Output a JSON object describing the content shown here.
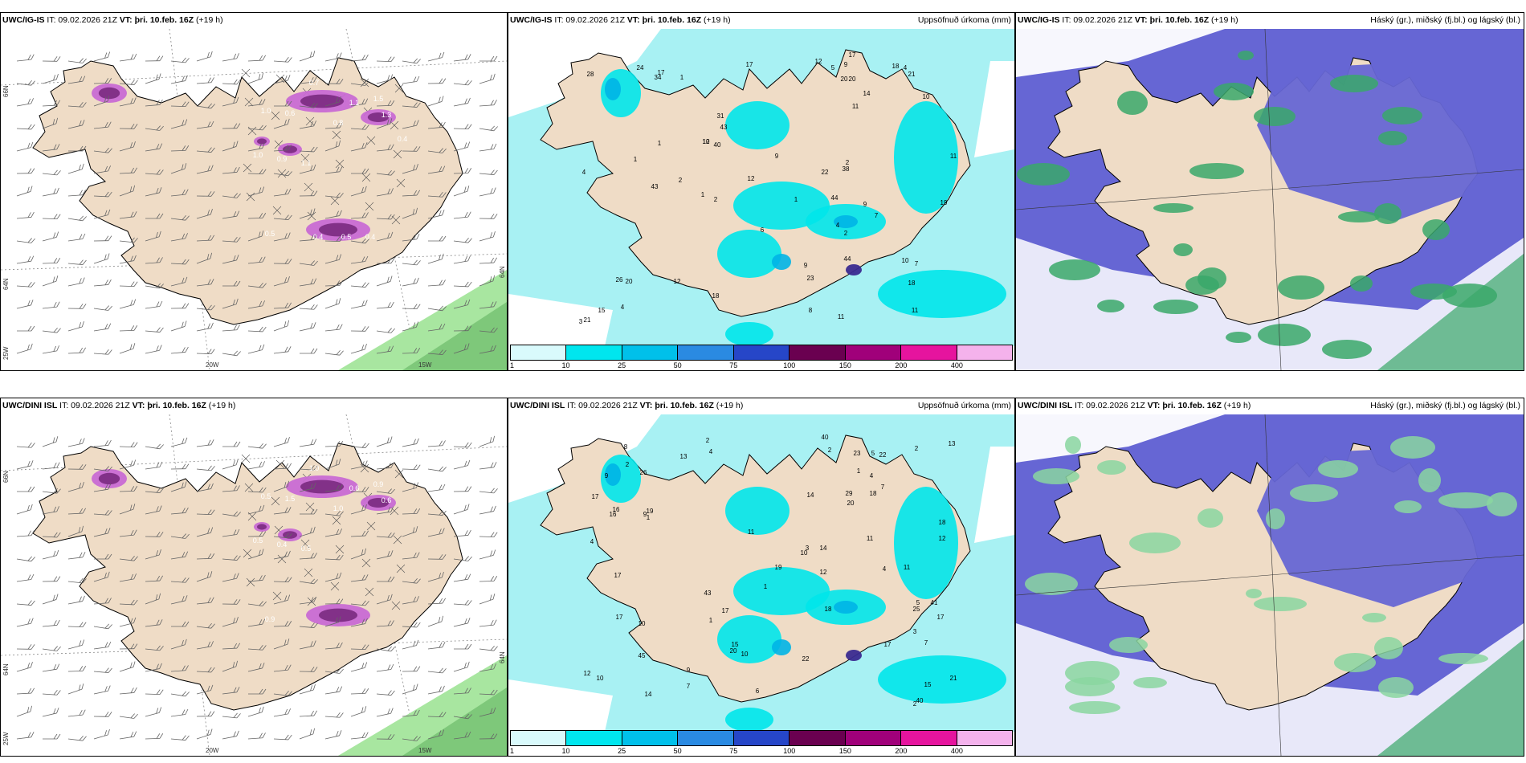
{
  "colors": {
    "land": "#efdcc6",
    "ocean": "#ffffff",
    "precip_light": "#a8f1f3",
    "precip_mid": "#00e5ea",
    "precip_heavy": "#1a6ae0",
    "cloud_high": "#6666d4",
    "cloud_mid": "#3aa86a",
    "cloud_low": "#d2584a",
    "snow": "#c86ad4",
    "wind_barb": "#666666"
  },
  "panels": {
    "top_left": {
      "model": "UWC/IG-IS",
      "init": "IT: 09.02.2026 21Z",
      "vt_label": "VT:",
      "vt": "þri. 10.feb. 16Z",
      "lead": "(+19 h)",
      "title_right": "",
      "axes": {
        "lon1": "20W",
        "lon2": "15W",
        "lat_top": "66N",
        "lat_mid": "64N",
        "lat_bot": "25W",
        "lat_right": "64N"
      },
      "labels": [
        "0.7",
        "1.0",
        "0.6",
        "1.1",
        "1.5",
        "1.3",
        "0.8",
        "1.0",
        "0.9",
        "1.1",
        "0.5",
        "0.4",
        "0.5",
        "0.4",
        "0.4"
      ]
    },
    "top_mid": {
      "model": "UWC/IG-IS",
      "init": "IT: 09.02.2026 21Z",
      "vt_label": "VT:",
      "vt": "þri. 10.feb. 16Z",
      "lead": "(+19 h)",
      "title_right": "Uppsöfnuð úrkoma (mm)",
      "labels": [
        "1",
        "2",
        "1",
        "2",
        "2",
        "1",
        "21",
        "11",
        "4",
        "9",
        "2",
        "1",
        "14",
        "20",
        "10",
        "20",
        "19",
        "15",
        "17",
        "11",
        "18",
        "12",
        "12",
        "17",
        "24",
        "21",
        "11",
        "44",
        "10",
        "11",
        "7",
        "4",
        "34",
        "12",
        "31",
        "43",
        "18",
        "6",
        "3",
        "9",
        "7",
        "18",
        "10",
        "38",
        "5",
        "20",
        "28",
        "23",
        "40",
        "22",
        "26",
        "44",
        "12",
        "9",
        "4",
        "1",
        "43",
        "8",
        "9",
        "4",
        "17"
      ]
    },
    "top_right": {
      "model": "UWC/IG-IS",
      "init": "IT: 09.02.2026 21Z",
      "vt_label": "VT:",
      "vt": "þri. 10.feb. 16Z",
      "lead": "(+19 h)",
      "title_right": "Háský (gr.), miðský (fj.bl.) og lágský (bl.)"
    },
    "bot_left": {
      "model": "UWC/DINI ISL",
      "init": "IT: 09.02.2026 21Z",
      "vt_label": "VT:",
      "vt": "þri. 10.feb. 16Z",
      "lead": "(+19 h)",
      "title_right": "",
      "axes": {
        "lon1": "20W",
        "lon2": "15W",
        "lat_top": "66N",
        "lat_mid": "64N",
        "lat_bot": "25W",
        "lat_right": "64N"
      },
      "labels": [
        "1.0",
        "0.5",
        "1.5",
        "0.6",
        "0.9",
        "0.6",
        "1.0",
        "0.5",
        "0.4",
        "0.5",
        "0.9"
      ]
    },
    "bot_mid": {
      "model": "UWC/DINI ISL",
      "init": "IT: 09.02.2026 21Z",
      "vt_label": "VT:",
      "vt": "þri. 10.feb. 16Z",
      "lead": "(+19 h)",
      "title_right": "Uppsöfnuð úrkoma (mm)",
      "labels": [
        "2",
        "1",
        "1",
        "2",
        "1",
        "1",
        "2",
        "16",
        "2",
        "3",
        "10",
        "20",
        "10",
        "12",
        "9",
        "22",
        "16",
        "10",
        "17",
        "17",
        "14",
        "12",
        "21",
        "17",
        "15",
        "20",
        "9",
        "9",
        "17",
        "11",
        "45",
        "41",
        "40",
        "43",
        "13",
        "3",
        "7",
        "4",
        "10",
        "4",
        "19",
        "5",
        "23",
        "25",
        "40",
        "19",
        "22",
        "29",
        "26",
        "15",
        "8",
        "11",
        "5",
        "2",
        "4",
        "7",
        "6",
        "7",
        "13",
        "14",
        "17",
        "18",
        "14",
        "18",
        "12",
        "11",
        "17",
        "18",
        "4"
      ]
    },
    "bot_right": {
      "model": "UWC/DINI ISL",
      "init": "IT: 09.02.2026 21Z",
      "vt_label": "VT:",
      "vt": "þri. 10.feb. 16Z",
      "lead": "(+19 h)",
      "title_right": "Háský (gr.), miðský (fj.bl.) og lágský (bl.)"
    }
  },
  "colorbar": {
    "ticks": [
      "1",
      "10",
      "25",
      "50",
      "75",
      "100",
      "150",
      "200",
      "400"
    ],
    "colors": [
      "#d9fafc",
      "#00e6ee",
      "#00c0ea",
      "#2a8ae2",
      "#2646c8",
      "#6a0050",
      "#a0007a",
      "#e6149e",
      "#f4b2ec"
    ]
  }
}
